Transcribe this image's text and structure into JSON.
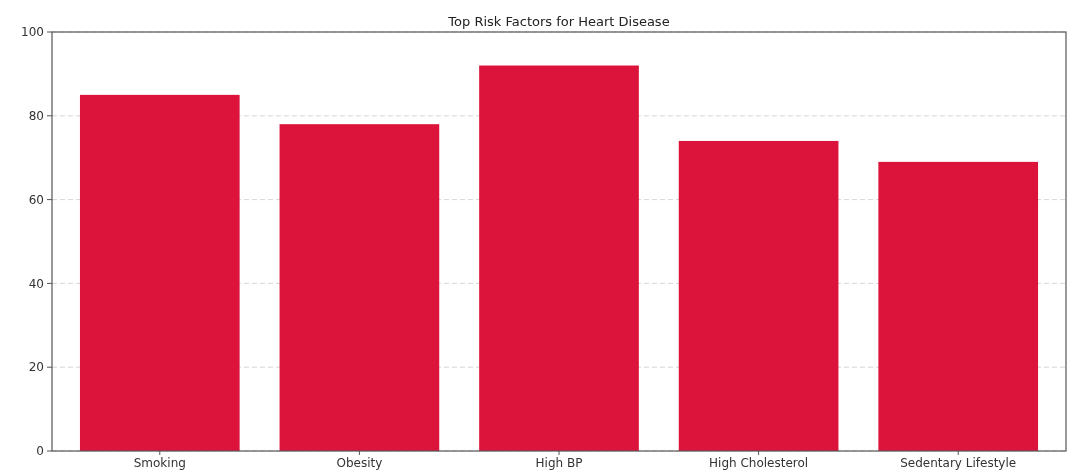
{
  "chart_data": {
    "type": "bar",
    "title": "Top Risk Factors for Heart Disease",
    "categories": [
      "Smoking",
      "Obesity",
      "High BP",
      "High Cholesterol",
      "Sedentary Lifestyle"
    ],
    "values": [
      85,
      78,
      92,
      74,
      69
    ],
    "color": "#dc143c",
    "ylim": [
      0,
      100
    ],
    "yticks": [
      0,
      20,
      40,
      60,
      80,
      100
    ],
    "grid": "y"
  }
}
